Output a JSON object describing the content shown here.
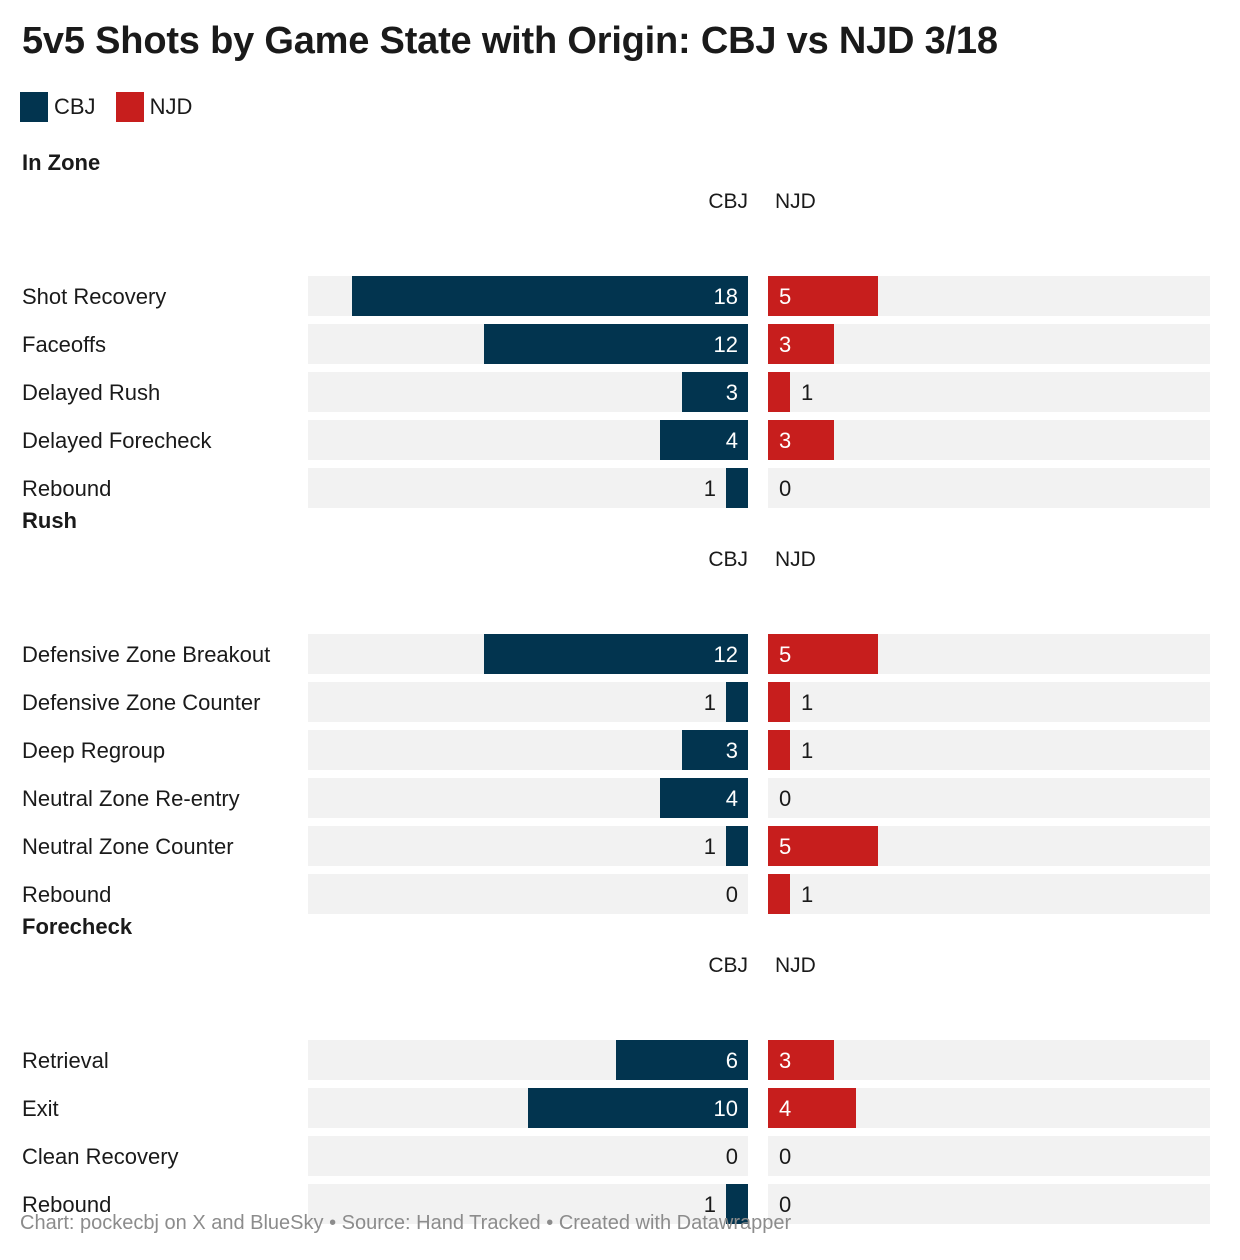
{
  "title": "5v5 Shots by Game State with Origin: CBJ vs NJD 3/18",
  "legend": [
    {
      "label": "CBJ",
      "color": "#02344f"
    },
    {
      "label": "NJD",
      "color": "#c71e1d"
    }
  ],
  "colors": {
    "cbj": "#02344f",
    "njd": "#c71e1d",
    "track": "#f2f2f2"
  },
  "footer": {
    "chart_prefix": "Chart:",
    "chart_credit": "pockecbj on X and BlueSky",
    "separator": "•",
    "source_prefix": "Source:",
    "source": "Hand Tracked",
    "created": "Created with Datawrapper"
  },
  "chart_data": {
    "type": "bar",
    "orientation": "horizontal-diverging",
    "value_max": 20,
    "series_names": [
      "CBJ",
      "NJD"
    ],
    "panels": [
      {
        "title": "In Zone",
        "categories": [
          "Shot Recovery",
          "Faceoffs",
          "Delayed Rush",
          "Delayed Forecheck",
          "Rebound"
        ],
        "series": [
          {
            "name": "CBJ",
            "values": [
              18,
              12,
              3,
              4,
              1
            ]
          },
          {
            "name": "NJD",
            "values": [
              5,
              3,
              1,
              3,
              0
            ]
          }
        ]
      },
      {
        "title": "Rush",
        "categories": [
          "Defensive Zone Breakout",
          "Defensive Zone Counter",
          "Deep Regroup",
          "Neutral Zone Re-entry",
          "Neutral Zone Counter",
          "Rebound"
        ],
        "series": [
          {
            "name": "CBJ",
            "values": [
              12,
              1,
              3,
              4,
              1,
              0
            ]
          },
          {
            "name": "NJD",
            "values": [
              5,
              1,
              1,
              0,
              5,
              1
            ]
          }
        ]
      },
      {
        "title": "Forecheck",
        "categories": [
          "Retrieval",
          "Exit",
          "Clean Recovery",
          "Rebound"
        ],
        "series": [
          {
            "name": "CBJ",
            "values": [
              6,
              10,
              0,
              1
            ]
          },
          {
            "name": "NJD",
            "values": [
              3,
              4,
              0,
              0
            ]
          }
        ]
      }
    ]
  }
}
